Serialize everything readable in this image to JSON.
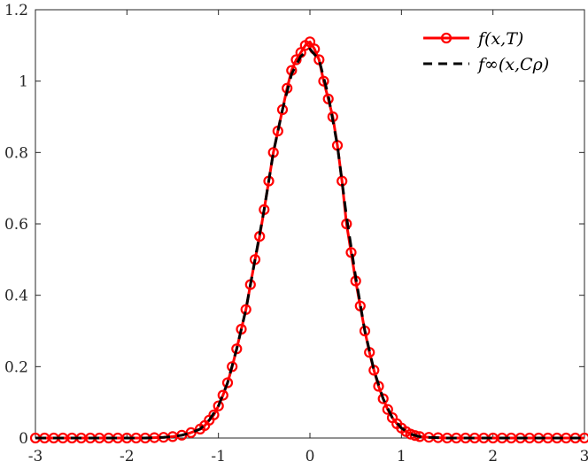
{
  "chart_data": {
    "type": "line",
    "xlim": [
      -3,
      3
    ],
    "ylim": [
      0,
      1.2
    ],
    "xticks": [
      -3,
      -2,
      -1,
      0,
      1,
      2,
      3
    ],
    "yticks": [
      0,
      0.2,
      0.4,
      0.6,
      0.8,
      1,
      1.2
    ],
    "xtick_labels": [
      "-3",
      "-2",
      "-1",
      "0",
      "1",
      "2",
      "3"
    ],
    "ytick_labels": [
      "0",
      "0.2",
      "0.4",
      "0.6",
      "0.8",
      "1",
      "1.2"
    ],
    "grid": false,
    "legend_position": "top-right",
    "series": [
      {
        "name": "f(x,T)",
        "style": "solid-circle-markers",
        "color": "#ff0000",
        "x": [
          -3.0,
          -2.9,
          -2.8,
          -2.7,
          -2.6,
          -2.5,
          -2.4,
          -2.3,
          -2.2,
          -2.1,
          -2.0,
          -1.9,
          -1.8,
          -1.7,
          -1.6,
          -1.5,
          -1.4,
          -1.3,
          -1.2,
          -1.15,
          -1.1,
          -1.05,
          -1.0,
          -0.95,
          -0.9,
          -0.85,
          -0.8,
          -0.75,
          -0.7,
          -0.65,
          -0.6,
          -0.55,
          -0.5,
          -0.45,
          -0.4,
          -0.35,
          -0.3,
          -0.25,
          -0.2,
          -0.15,
          -0.1,
          -0.05,
          0.0,
          0.05,
          0.1,
          0.15,
          0.2,
          0.25,
          0.3,
          0.35,
          0.4,
          0.45,
          0.5,
          0.55,
          0.6,
          0.65,
          0.7,
          0.75,
          0.8,
          0.85,
          0.9,
          0.95,
          1.0,
          1.05,
          1.1,
          1.15,
          1.2,
          1.3,
          1.4,
          1.5,
          1.6,
          1.7,
          1.8,
          1.9,
          2.0,
          2.1,
          2.2,
          2.3,
          2.4,
          2.5,
          2.6,
          2.7,
          2.8,
          2.9,
          3.0
        ],
        "y": [
          0.0,
          0.0,
          0.0,
          0.0,
          0.0,
          0.0,
          0.0,
          0.0,
          0.0,
          0.0,
          0.0,
          0.0,
          0.0,
          0.001,
          0.002,
          0.004,
          0.008,
          0.015,
          0.025,
          0.035,
          0.05,
          0.065,
          0.09,
          0.12,
          0.155,
          0.2,
          0.25,
          0.305,
          0.36,
          0.43,
          0.5,
          0.565,
          0.64,
          0.72,
          0.8,
          0.86,
          0.92,
          0.98,
          1.03,
          1.06,
          1.08,
          1.1,
          1.11,
          1.09,
          1.06,
          1.0,
          0.95,
          0.9,
          0.82,
          0.72,
          0.6,
          0.52,
          0.44,
          0.37,
          0.3,
          0.24,
          0.19,
          0.145,
          0.11,
          0.08,
          0.057,
          0.04,
          0.028,
          0.018,
          0.011,
          0.007,
          0.004,
          0.002,
          0.001,
          0.0,
          0.0,
          0.0,
          0.0,
          0.0,
          0.0,
          0.0,
          0.0,
          0.0,
          0.0,
          0.0,
          0.0,
          0.0,
          0.0,
          0.0,
          0.0
        ]
      },
      {
        "name": "f∞(x,Cρ)",
        "style": "dashed",
        "color": "#000000",
        "x": [
          -3.0,
          -2.5,
          -2.0,
          -1.8,
          -1.6,
          -1.5,
          -1.4,
          -1.3,
          -1.2,
          -1.1,
          -1.0,
          -0.9,
          -0.8,
          -0.7,
          -0.6,
          -0.5,
          -0.4,
          -0.3,
          -0.2,
          -0.1,
          0.0,
          0.1,
          0.2,
          0.3,
          0.4,
          0.5,
          0.6,
          0.7,
          0.8,
          0.9,
          1.0,
          1.1,
          1.2,
          1.3,
          1.4,
          1.5,
          1.6,
          1.8,
          2.0,
          2.5,
          3.0
        ],
        "y": [
          0.0,
          0.0,
          0.0,
          0.0,
          0.002,
          0.004,
          0.008,
          0.015,
          0.025,
          0.05,
          0.09,
          0.155,
          0.25,
          0.36,
          0.5,
          0.64,
          0.8,
          0.92,
          1.02,
          1.07,
          1.09,
          1.06,
          0.96,
          0.82,
          0.62,
          0.45,
          0.3,
          0.19,
          0.11,
          0.057,
          0.028,
          0.011,
          0.004,
          0.002,
          0.001,
          0.0,
          0.0,
          0.0,
          0.0,
          0.0,
          0.0
        ]
      }
    ]
  },
  "legend": {
    "entries": [
      "f(x,T)",
      "f∞(x,Cρ)"
    ]
  }
}
